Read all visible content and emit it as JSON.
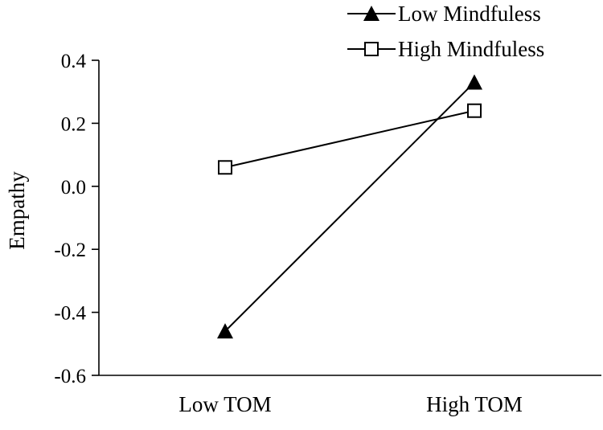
{
  "chart_data": {
    "type": "line",
    "title": "",
    "xlabel": "",
    "ylabel": "Empathy",
    "categories": [
      "Low TOM",
      "High TOM"
    ],
    "ylim": [
      -0.6,
      0.4
    ],
    "yticks": [
      -0.6,
      -0.4,
      -0.2,
      0.0,
      0.2,
      0.4
    ],
    "ytick_labels": [
      "-0.6",
      "-0.4",
      "-0.2",
      "0.0",
      "0.2",
      "0.4"
    ],
    "grid": false,
    "legend_position": "top-right",
    "series": [
      {
        "name": "Low Mindfuless",
        "marker": "filled-triangle",
        "values": [
          -0.46,
          0.33
        ]
      },
      {
        "name": "High Mindfuless",
        "marker": "open-square",
        "values": [
          0.06,
          0.24
        ]
      }
    ]
  },
  "colors": {
    "line": "#000000",
    "background": "#ffffff"
  }
}
